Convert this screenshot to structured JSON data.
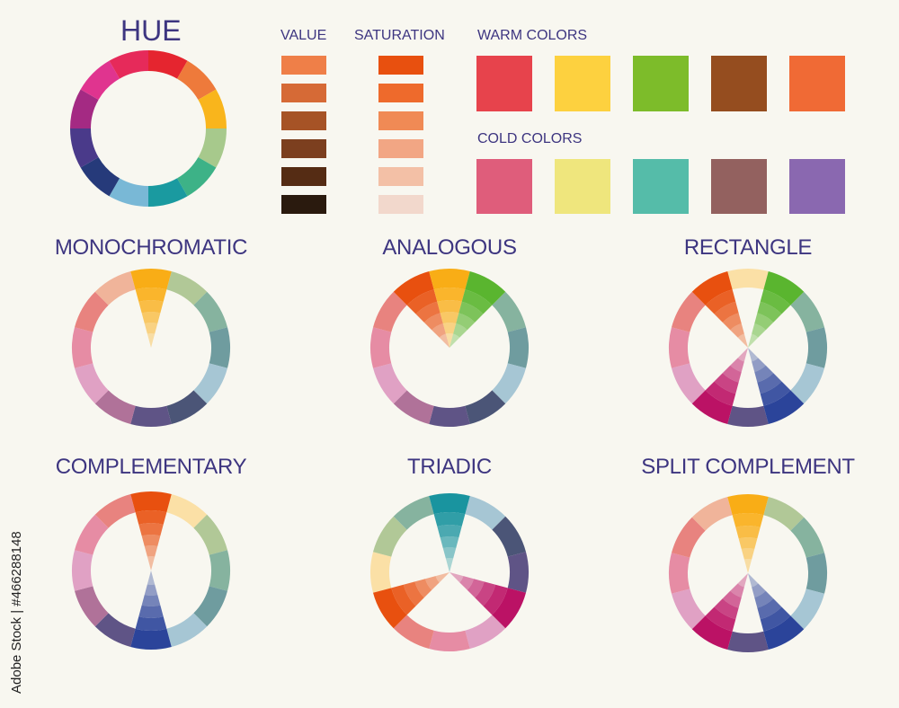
{
  "titles": {
    "hue": "HUE",
    "value": "VALUE",
    "saturation": "SATURATION",
    "warm": "WARM COLORS",
    "cold": "COLD COLORS"
  },
  "hue_wheel": [
    "#e5252f",
    "#ee7a3b",
    "#f9b51c",
    "#a7c98c",
    "#3db287",
    "#1a9aa0",
    "#79b8d6",
    "#263a7a",
    "#4a3a8a",
    "#a42a83",
    "#e0348f",
    "#e62a5a"
  ],
  "value_swatches": [
    "#ef7f48",
    "#d66a36",
    "#a65326",
    "#7c3f1f",
    "#552c14",
    "#2a1a0e"
  ],
  "saturation_swatches": [
    "#e8500f",
    "#ee6a2c",
    "#f08a55",
    "#f2a684",
    "#f3c0a6",
    "#f2d8cc"
  ],
  "warm_colors": [
    "#e7434c",
    "#fdd13f",
    "#7dbc2a",
    "#954d1f",
    "#f06a35"
  ],
  "cold_colors": [
    "#df5d7b",
    "#efe67d",
    "#55bca9",
    "#93615f",
    "#8a68b0"
  ],
  "wheels": [
    {
      "name": "MONOCHROMATIC",
      "ring": [
        "#fbe0a6",
        "#b1c897",
        "#86b39f",
        "#6f9c9f",
        "#a6c6d4",
        "#4b5577",
        "#5f5486",
        "#b07299",
        "#e0a1c4",
        "#e68ca4",
        "#e8837f",
        "#f0b49a"
      ],
      "wedges": [
        {
          "index": 0,
          "color": "#f9ad16"
        }
      ]
    },
    {
      "name": "ANALOGOUS",
      "ring": [
        "#fbe0a6",
        "#b1c897",
        "#86b39f",
        "#6f9c9f",
        "#a6c6d4",
        "#4b5577",
        "#5f5486",
        "#b07299",
        "#e0a1c4",
        "#e68ca4",
        "#e8837f",
        "#f0b49a"
      ],
      "wedges": [
        {
          "index": 11,
          "color": "#e8500f"
        },
        {
          "index": 0,
          "color": "#f9ad16"
        },
        {
          "index": 1,
          "color": "#5ab52f"
        }
      ]
    },
    {
      "name": "RECTANGLE",
      "ring": [
        "#fbe0a6",
        "#b1c897",
        "#86b39f",
        "#6f9c9f",
        "#a6c6d4",
        "#4b5577",
        "#5f5486",
        "#b07299",
        "#e0a1c4",
        "#e68ca4",
        "#e8837f",
        "#f0b49a"
      ],
      "wedges": [
        {
          "index": 11,
          "color": "#e8500f"
        },
        {
          "index": 1,
          "color": "#5ab52f"
        },
        {
          "index": 5,
          "color": "#2b449a"
        },
        {
          "index": 7,
          "color": "#bb1265"
        }
      ]
    },
    {
      "name": "COMPLEMENTARY",
      "ring": [
        "#f0b49a",
        "#fbe0a6",
        "#b1c897",
        "#86b39f",
        "#6f9c9f",
        "#a6c6d4",
        "#4b5577",
        "#5f5486",
        "#b07299",
        "#e0a1c4",
        "#e68ca4",
        "#e8837f"
      ],
      "wedges": [
        {
          "index": 0,
          "color": "#e8500f"
        },
        {
          "index": 6,
          "color": "#2b449a"
        }
      ]
    },
    {
      "name": "TRIADIC",
      "ring": [
        "#6f9c9f",
        "#a6c6d4",
        "#4b5577",
        "#5f5486",
        "#b07299",
        "#e0a1c4",
        "#e68ca4",
        "#e8837f",
        "#f0b49a",
        "#fbe0a6",
        "#b1c897",
        "#86b39f"
      ],
      "wedges": [
        {
          "index": 0,
          "color": "#19949f"
        },
        {
          "index": 4,
          "color": "#bb1265"
        },
        {
          "index": 8,
          "color": "#e8500f"
        }
      ]
    },
    {
      "name": "SPLIT COMPLEMENT",
      "ring": [
        "#fbe0a6",
        "#b1c897",
        "#86b39f",
        "#6f9c9f",
        "#a6c6d4",
        "#4b5577",
        "#5f5486",
        "#b07299",
        "#e0a1c4",
        "#e68ca4",
        "#e8837f",
        "#f0b49a"
      ],
      "wedges": [
        {
          "index": 0,
          "color": "#f9ad16"
        },
        {
          "index": 5,
          "color": "#2b449a"
        },
        {
          "index": 7,
          "color": "#bb1265"
        }
      ]
    }
  ],
  "credit": "Adobe Stock | #466288148",
  "background": "#f8f7f0",
  "text_color": "#3d3580"
}
